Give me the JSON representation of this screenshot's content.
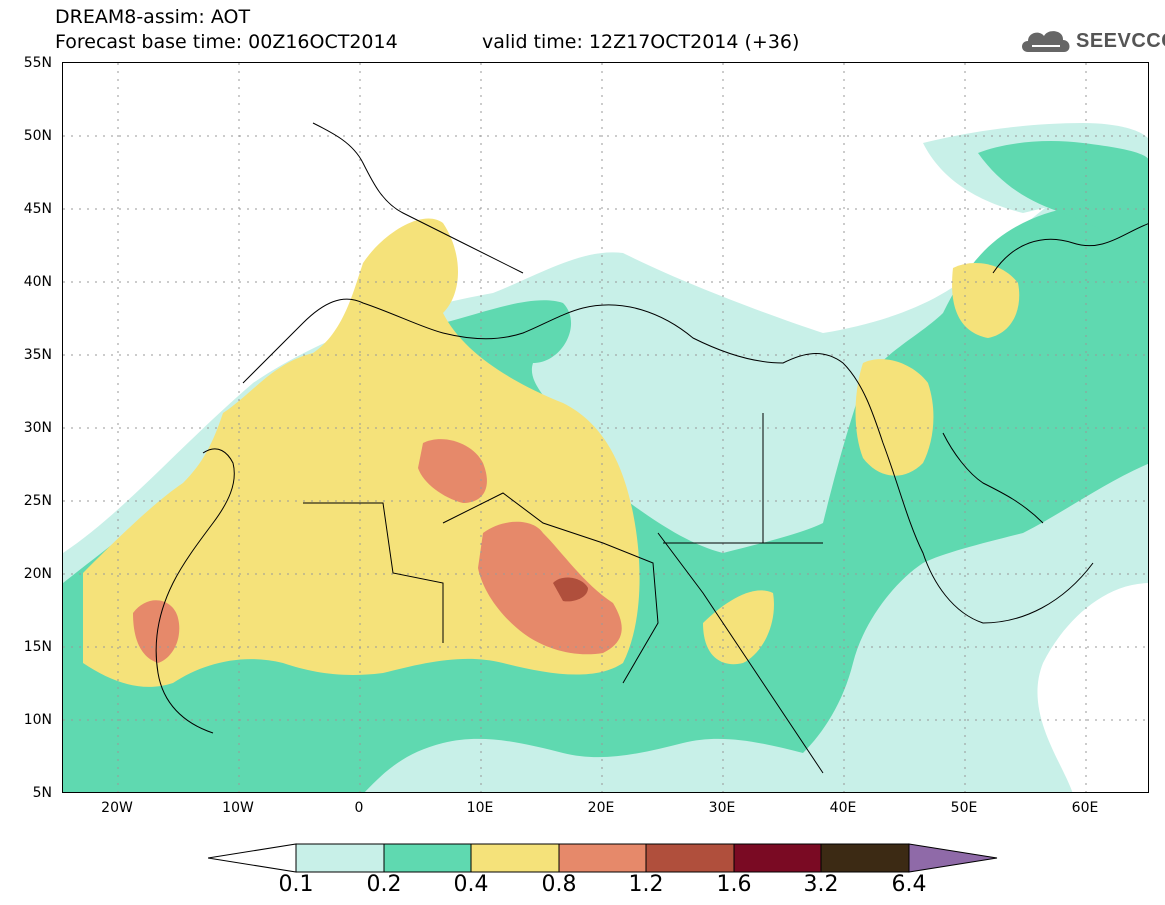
{
  "title": {
    "line1": "DREAM8-assim: AOT",
    "line2": "Forecast base time: 00Z16OCT2014",
    "valid": "valid time: 12Z17OCT2014 (+36)"
  },
  "logo": {
    "text": "SEEVCCC",
    "icon": "cloud-icon"
  },
  "axes": {
    "y_labels": [
      "55N",
      "50N",
      "45N",
      "40N",
      "35N",
      "30N",
      "25N",
      "20N",
      "15N",
      "10N",
      "5N"
    ],
    "x_labels": [
      "20W",
      "10W",
      "0",
      "10E",
      "20E",
      "30E",
      "40E",
      "50E",
      "60E"
    ]
  },
  "colorbar": {
    "labels": [
      "0.1",
      "0.2",
      "0.4",
      "0.8",
      "1.2",
      "1.6",
      "3.2",
      "6.4"
    ],
    "colors": [
      "#ffffff",
      "#c8f0e8",
      "#5fd9b0",
      "#f5e27a",
      "#e6896a",
      "#b04f3c",
      "#7a0a23",
      "#3c2a14",
      "#8f6aa8"
    ]
  },
  "map": {
    "lon_range": [
      -25,
      65
    ],
    "lat_range": [
      5,
      55
    ],
    "colors": {
      "c1": "#c8f0e8",
      "c2": "#5fd9b0",
      "c3": "#f5e27a",
      "c4": "#e6896a",
      "c5": "#b04f3c"
    }
  }
}
